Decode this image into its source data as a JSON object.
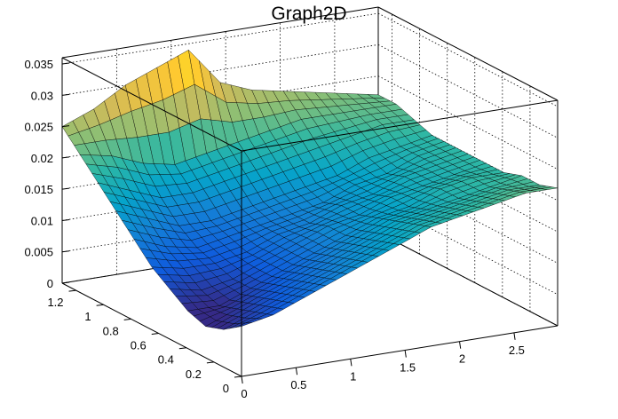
{
  "chart_data": {
    "type": "surface",
    "title": "Graph2D",
    "xlabel": "",
    "ylabel": "",
    "zlabel": "",
    "xlim": [
      0,
      2.9
    ],
    "ylim": [
      0,
      1.3
    ],
    "zlim": [
      0,
      0.036
    ],
    "x_ticks": [
      "0",
      "0.5",
      "1",
      "1.5",
      "2",
      "2.5"
    ],
    "y_ticks": [
      "0",
      "0.2",
      "0.4",
      "0.6",
      "0.8",
      "1",
      "1.2"
    ],
    "z_ticks": [
      "0",
      "0.005",
      "0.01",
      "0.015",
      "0.02",
      "0.025",
      "0.03",
      "0.035"
    ],
    "x_tick_values": [
      0,
      0.5,
      1,
      1.5,
      2,
      2.5
    ],
    "y_tick_values": [
      0,
      0.2,
      0.4,
      0.6,
      0.8,
      1.0,
      1.2
    ],
    "z_tick_values": [
      0,
      0.005,
      0.01,
      0.015,
      0.02,
      0.025,
      0.03,
      0.035
    ],
    "x": [
      0,
      0.29,
      0.58,
      0.87,
      1.16,
      1.45,
      1.74,
      2.03,
      2.32,
      2.61,
      2.9
    ],
    "y": [
      0,
      0.13,
      0.26,
      0.39,
      0.52,
      0.65,
      0.78,
      0.91,
      1.04,
      1.17,
      1.3
    ],
    "z": [
      [
        0.008,
        0.009,
        0.011,
        0.013,
        0.015,
        0.017,
        0.019,
        0.02,
        0.021,
        0.022,
        0.022
      ],
      [
        0.006,
        0.008,
        0.01,
        0.012,
        0.014,
        0.016,
        0.018,
        0.019,
        0.02,
        0.021,
        0.021
      ],
      [
        0.005,
        0.007,
        0.009,
        0.011,
        0.013,
        0.015,
        0.017,
        0.018,
        0.019,
        0.02,
        0.021
      ],
      [
        0.006,
        0.006,
        0.008,
        0.01,
        0.012,
        0.014,
        0.016,
        0.017,
        0.019,
        0.02,
        0.02
      ],
      [
        0.008,
        0.007,
        0.008,
        0.01,
        0.012,
        0.014,
        0.015,
        0.017,
        0.018,
        0.019,
        0.02
      ],
      [
        0.01,
        0.009,
        0.009,
        0.01,
        0.012,
        0.013,
        0.015,
        0.016,
        0.018,
        0.019,
        0.02
      ],
      [
        0.013,
        0.011,
        0.01,
        0.011,
        0.012,
        0.013,
        0.014,
        0.016,
        0.017,
        0.019,
        0.02
      ],
      [
        0.016,
        0.014,
        0.012,
        0.012,
        0.013,
        0.014,
        0.015,
        0.016,
        0.018,
        0.019,
        0.02
      ],
      [
        0.019,
        0.017,
        0.015,
        0.015,
        0.016,
        0.017,
        0.018,
        0.019,
        0.02,
        0.021,
        0.021
      ],
      [
        0.022,
        0.021,
        0.019,
        0.018,
        0.019,
        0.02,
        0.021,
        0.022,
        0.022,
        0.022,
        0.022
      ],
      [
        0.025,
        0.027,
        0.03,
        0.032,
        0.034,
        0.028,
        0.026,
        0.025,
        0.024,
        0.023,
        0.022
      ]
    ],
    "colormap": [
      "#352a87",
      "#0f5cdd",
      "#1481d6",
      "#06a4ca",
      "#2eb7a4",
      "#87bf77",
      "#d1bb59",
      "#fec832",
      "#f9fb0e"
    ],
    "grid": true,
    "legend": "none"
  }
}
